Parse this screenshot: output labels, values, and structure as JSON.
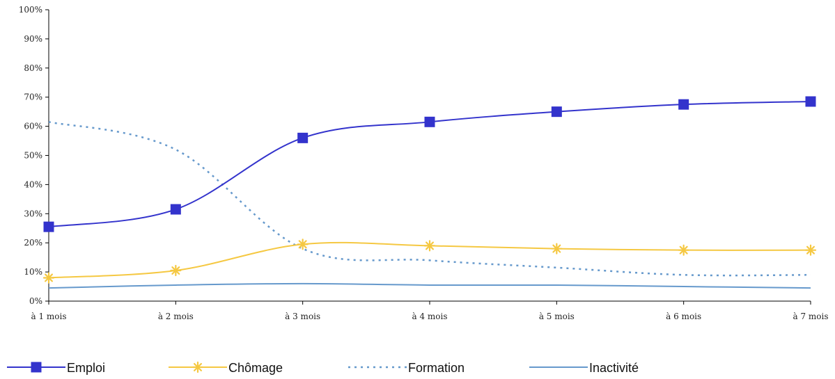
{
  "chart_data": {
    "type": "line",
    "title": "",
    "xlabel": "",
    "ylabel": "",
    "categories": [
      "à 1 mois",
      "à 2 mois",
      "à 3 mois",
      "à 4 mois",
      "à 5 mois",
      "à 6 mois",
      "à 7 mois"
    ],
    "ylim": [
      0,
      100
    ],
    "yticks": [
      "0%",
      "10%",
      "20%",
      "30%",
      "40%",
      "50%",
      "60%",
      "70%",
      "80%",
      "90%",
      "100%"
    ],
    "grid": false,
    "legend_position": "bottom",
    "series": [
      {
        "name": "Emploi",
        "values": [
          25.5,
          31.5,
          56,
          61.5,
          65,
          67.5,
          68.5
        ],
        "color": "#3333cc",
        "marker": "square",
        "line": "solid"
      },
      {
        "name": "Chômage",
        "values": [
          8,
          10.5,
          19.5,
          19,
          18,
          17.5,
          17.5
        ],
        "color": "#f5c842",
        "marker": "asterisk",
        "line": "solid"
      },
      {
        "name": "Formation",
        "values": [
          61.5,
          52,
          18,
          14,
          11.5,
          9,
          9
        ],
        "color": "#6699cc",
        "marker": "none",
        "line": "dotted"
      },
      {
        "name": "Inactivité",
        "values": [
          4.5,
          5.5,
          6,
          5.5,
          5.5,
          5,
          4.5
        ],
        "color": "#6699cc",
        "marker": "none",
        "line": "solid"
      }
    ]
  }
}
